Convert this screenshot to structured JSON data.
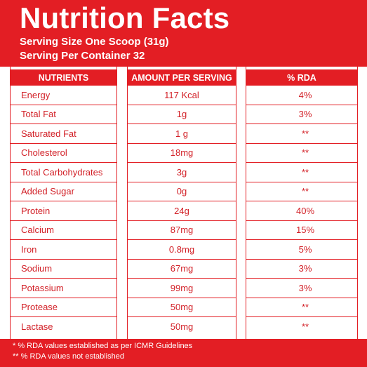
{
  "title": "Nutrition Facts",
  "serving_size": "Serving Size One Scoop (31g)",
  "servings_per_container": "Serving Per Container 32",
  "headers": {
    "nutrients": "NUTRIENTS",
    "amount": "AMOUNT PER SERVING",
    "rda": "% RDA"
  },
  "rows": [
    {
      "nutrient": "Energy",
      "amount": "117 Kcal",
      "rda": "4%"
    },
    {
      "nutrient": "Total Fat",
      "amount": "1g",
      "rda": "3%"
    },
    {
      "nutrient": "Saturated Fat",
      "amount": "1 g",
      "rda": "**"
    },
    {
      "nutrient": "Cholesterol",
      "amount": "18mg",
      "rda": "**"
    },
    {
      "nutrient": "Total Carbohydrates",
      "amount": "3g",
      "rda": "**"
    },
    {
      "nutrient": "Added Sugar",
      "amount": "0g",
      "rda": "**"
    },
    {
      "nutrient": "Protein",
      "amount": "24g",
      "rda": "40%"
    },
    {
      "nutrient": "Calcium",
      "amount": "87mg",
      "rda": "15%"
    },
    {
      "nutrient": "Iron",
      "amount": "0.8mg",
      "rda": "5%"
    },
    {
      "nutrient": "Sodium",
      "amount": "67mg",
      "rda": "3%"
    },
    {
      "nutrient": "Potassium",
      "amount": "99mg",
      "rda": "3%"
    },
    {
      "nutrient": "Protease",
      "amount": "50mg",
      "rda": "**"
    },
    {
      "nutrient": "Lactase",
      "amount": "50mg",
      "rda": "**"
    }
  ],
  "footnotes": {
    "note1": "* % RDA values established as per ICMR Guidelines",
    "note2": "** % RDA values not established"
  },
  "colors": {
    "brand_red": "#e31e24",
    "text_red": "#d21f26",
    "white": "#ffffff"
  }
}
